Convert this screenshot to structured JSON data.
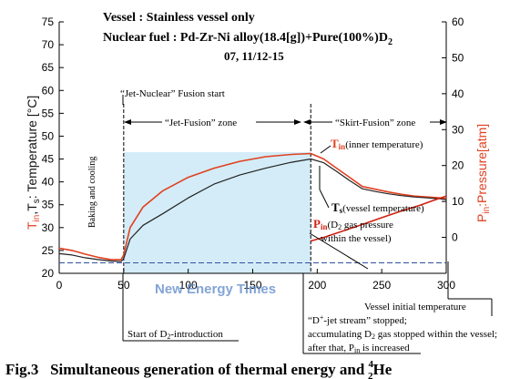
{
  "chart_data": {
    "type": "line",
    "header": {
      "vessel": "Vessel : Stainless vessel only",
      "fuel_prefix": "Nuclear fuel : Pd-Zr-Ni alloy(18.4[g])+Pure(100%)D",
      "fuel_sub": "2",
      "date": "07, 11/12-15"
    },
    "x_ticks": [
      "0",
      "50",
      "100",
      "150",
      "200",
      "250",
      "300"
    ],
    "xlim": [
      0,
      300
    ],
    "y_left": {
      "label_main": "T",
      "label_sub1": "in",
      "label_mid": ",T",
      "label_sub2": "s",
      "label_rest": ": Temperature [°C]",
      "ylim": [
        20,
        75
      ],
      "ticks": [
        "20",
        "25",
        "30",
        "35",
        "40",
        "45",
        "50",
        "55",
        "60",
        "65",
        "70",
        "75"
      ]
    },
    "y_right": {
      "label_main": "P",
      "label_sub": "in",
      "label_rest": ":Pressure[atm]",
      "ylim": [
        -10,
        60
      ],
      "ticks": [
        "0",
        "10",
        "20",
        "30",
        "40",
        "50",
        "60"
      ]
    },
    "series": [
      {
        "key": "t_in",
        "color": "#e04020",
        "x": [
          0,
          10,
          20,
          30,
          40,
          48,
          50,
          55,
          65,
          80,
          100,
          120,
          140,
          160,
          180,
          195,
          205,
          215,
          225,
          235,
          245,
          255,
          265,
          275,
          285,
          295,
          300
        ],
        "y": [
          25.5,
          25,
          24.2,
          23.5,
          23,
          23,
          24,
          30,
          34.5,
          38,
          41,
          43,
          44.5,
          45.5,
          46,
          46.2,
          45,
          43,
          41,
          39,
          38.4,
          37.8,
          37.3,
          36.9,
          36.7,
          36.5,
          36.3
        ]
      },
      {
        "key": "t_s",
        "color": "#222222",
        "x": [
          0,
          10,
          20,
          30,
          40,
          48,
          50,
          55,
          65,
          80,
          100,
          120,
          140,
          160,
          180,
          195,
          205,
          215,
          225,
          235,
          245,
          255,
          265,
          275,
          285,
          295,
          300
        ],
        "y": [
          24.3,
          24,
          23.4,
          23,
          22.7,
          22.6,
          23.2,
          27.5,
          30.5,
          33,
          36.5,
          39.5,
          41.5,
          43,
          44.3,
          45,
          44.2,
          42.3,
          40.3,
          38.5,
          37.9,
          37.4,
          37,
          36.7,
          36.5,
          36.3,
          36.1
        ]
      },
      {
        "key": "p_in",
        "color": "#d02010",
        "axis": "right",
        "x": [
          195,
          205,
          220,
          235,
          250,
          265,
          280,
          290,
          300
        ],
        "y": [
          -1,
          0,
          1.8,
          3.6,
          5.5,
          7.3,
          9,
          10.3,
          11.5
        ]
      }
    ],
    "baseline": {
      "value": 22.3,
      "color": "#3050a0"
    },
    "zone_fill": {
      "x_range": [
        50,
        195
      ],
      "y_range": [
        20,
        46.5
      ],
      "color": "#d4ecf7"
    },
    "vlines_x": [
      50,
      195
    ],
    "annotations": {
      "jet_nuclear_start": "“Jet-Nuclear” Fusion start",
      "jet_fusion_zone": "“Jet-Fusion” zone",
      "skirt_fusion_zone": "“Skirt-Fusion” zone",
      "baking": "Baking and cooling",
      "t_in_main": "T",
      "t_in_sub": "in",
      "t_in_desc": "(inner temperature)",
      "t_s_main": "T",
      "t_s_sub": "s",
      "t_s_desc": "(vessel temperature)",
      "p_in_main": "P",
      "p_in_sub": "in",
      "p_in_desc1": "(D",
      "p_in_desc1_sub": "2",
      "p_in_desc1_rest": " gas pressure",
      "p_in_desc2": "within the vessel)",
      "vessel_initial": "Vessel initial temperature",
      "start_d2_prefix": "Start of D",
      "start_d2_sub": "2",
      "start_d2_rest": "-introduction",
      "stop_line1_prefix": "“D",
      "stop_line1_sup": "+",
      "stop_line1_rest": "-jet stream” stopped;",
      "stop_line2_prefix": "accumulating D",
      "stop_line2_sub": "2",
      "stop_line2_rest": " gas stopped within the vessel;",
      "stop_line3_prefix": "after that, P",
      "stop_line3_sub": "in",
      "stop_line3_rest": " is increased"
    },
    "watermark": "New Energy Times"
  },
  "caption": {
    "prefix": "Fig.3   Simultaneous generation of thermal energy and ",
    "he_sup": "4",
    "he_sub": "2",
    "he": "He"
  }
}
